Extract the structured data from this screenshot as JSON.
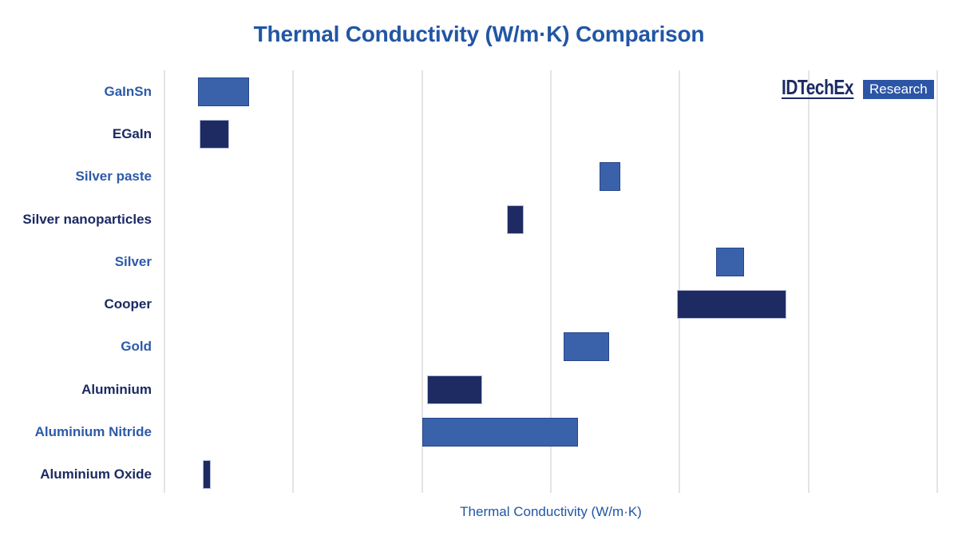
{
  "title": "Thermal Conductivity (W/m·K) Comparison",
  "logo": {
    "brand": "IDTechEx",
    "suffix": "Research"
  },
  "colors": {
    "background": "#FFFFFF",
    "title": "#2156A5",
    "axis_label": "#2156A5",
    "gridline": "#E4E4E4",
    "label_blue": "#2D5AA9",
    "label_navy": "#1B2A63",
    "bar_blue": "#3A62AA",
    "bar_navy": "#1E2B63",
    "bar_blue_border": "#27458C",
    "bar_navy_border": "#B2BAD6",
    "logo_text": "#1B2A63",
    "logo_box": "#2D55A6"
  },
  "chart_data": {
    "type": "bar",
    "orientation": "horizontal",
    "title": "Thermal Conductivity (W/m·K) Comparison",
    "xlabel": "Thermal Conductivity (W/m·K)",
    "ylabel": "",
    "xlim": [
      0,
      600
    ],
    "gridlines_x": [
      0,
      100,
      200,
      300,
      400,
      500,
      600
    ],
    "x_tick_labels_shown": false,
    "legend": "none",
    "units": "W/m·K",
    "bars": [
      {
        "label": "GaInSn",
        "range": [
          26,
          66
        ],
        "tone": "blue"
      },
      {
        "label": "EGaIn",
        "range": [
          27,
          50
        ],
        "tone": "navy"
      },
      {
        "label": "Silver paste",
        "range": [
          338,
          354
        ],
        "tone": "blue"
      },
      {
        "label": "Silver nanoparticles",
        "range": [
          266,
          279
        ],
        "tone": "navy"
      },
      {
        "label": "Silver",
        "range": [
          428,
          450
        ],
        "tone": "blue"
      },
      {
        "label": "Cooper",
        "range": [
          398,
          483
        ],
        "tone": "navy"
      },
      {
        "label": "Gold",
        "range": [
          310,
          345
        ],
        "tone": "blue"
      },
      {
        "label": "Aluminium",
        "range": [
          204,
          247
        ],
        "tone": "navy"
      },
      {
        "label": "Aluminium Nitride",
        "range": [
          200,
          321
        ],
        "tone": "blue"
      },
      {
        "label": "Aluminium Oxide",
        "range": [
          30,
          36
        ],
        "tone": "navy"
      }
    ]
  }
}
